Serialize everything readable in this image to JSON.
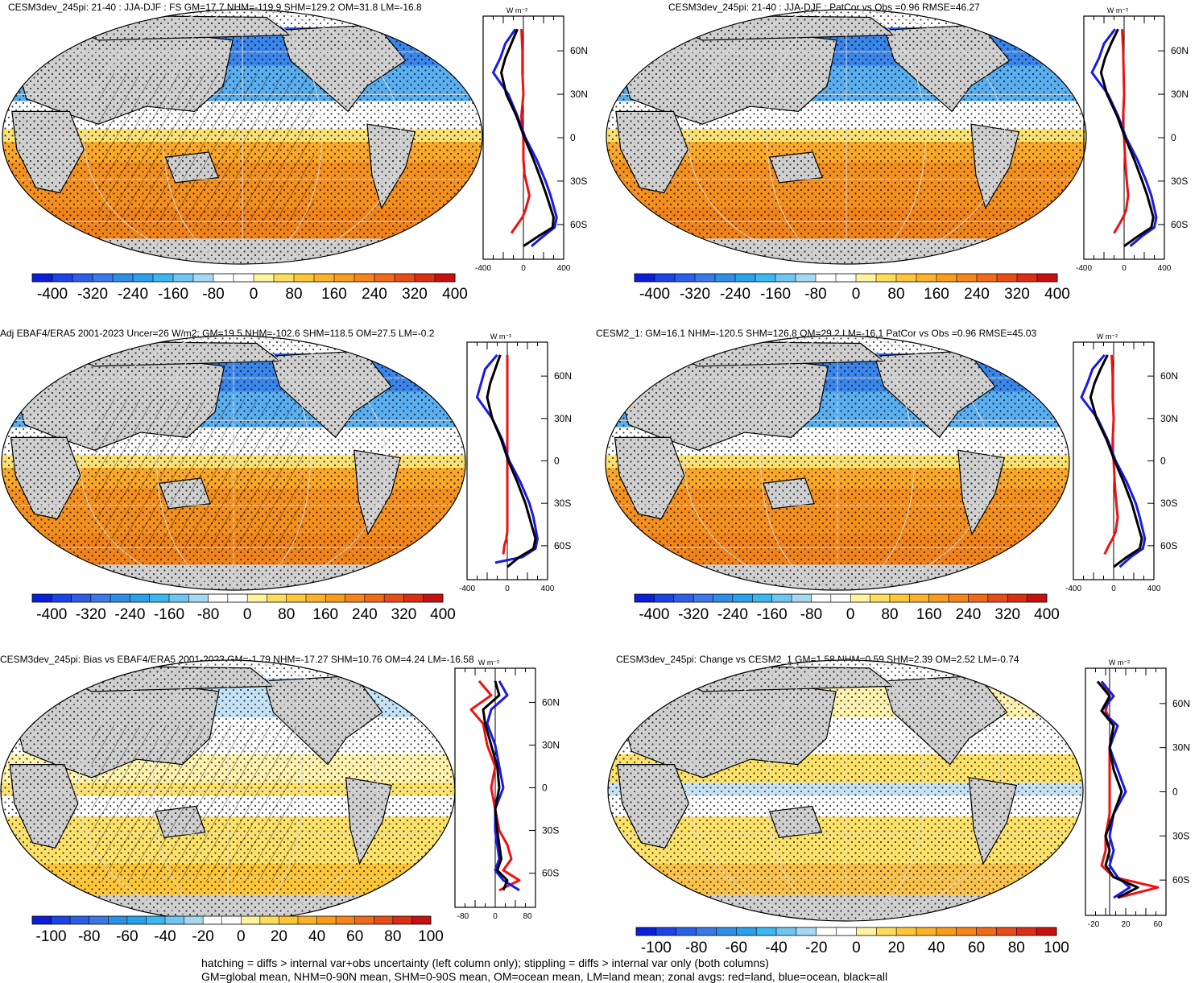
{
  "footer": {
    "line1": "hatching = diffs > internal var+obs uncertainty (left column only); stippling = diffs > internal var only (both columns)",
    "line2": "GM=global mean, NHM=0-90N mean, SHM=0-90S mean, OM=ocean mean, LM=land mean; zonal avgs: red=land, blue=ocean, black=all"
  },
  "palette": [
    "#0a1fd6",
    "#1b43e6",
    "#2c5ee8",
    "#3b78e8",
    "#2f8ee6",
    "#2aa1ea",
    "#3db7ef",
    "#70c6f0",
    "#a6d8f3",
    "#ffffff",
    "#ffffff",
    "#fef3a0",
    "#fddc5b",
    "#fcc638",
    "#fbb22a",
    "#f99b1c",
    "#f5841a",
    "#f06a19",
    "#e84d17",
    "#dc2e14",
    "#c81010"
  ],
  "units": "W m⁻²",
  "zonal_colors": {
    "land": "#ee1111",
    "ocean": "#1a1ae6",
    "all": "#000000"
  },
  "panels": [
    {
      "title": "CESM3dev_245pi: 21-40 : JJA-DJF : FS GM=17.7 NHM=-119.9 SHM=129.2 OM=31.8 LM=-16.8",
      "colorbar_labels": [
        "-400",
        "-320",
        "-240",
        "-160",
        "-80",
        "0",
        "80",
        "160",
        "240",
        "320",
        "400"
      ],
      "chart_data": {
        "type": "line",
        "xlim": [
          -400,
          400
        ],
        "xtick_labels": [
          "-400",
          "0",
          "400"
        ],
        "ytick_labels": [
          "60N",
          "30N",
          "0",
          "30S",
          "60S"
        ],
        "series": [
          {
            "name": "land",
            "x": [
              -20,
              -10,
              -10,
              0,
              -20,
              -10,
              0,
              0,
              10,
              60,
              20,
              -10,
              -60,
              -120
            ],
            "y": [
              75,
              60,
              45,
              30,
              15,
              5,
              0,
              -15,
              -25,
              -40,
              -50,
              -55,
              -60,
              -66
            ]
          },
          {
            "name": "ocean",
            "x": [
              -80,
              -180,
              -230,
              -300,
              -150,
              -60,
              20,
              130,
              220,
              270,
              330,
              310,
              200,
              80
            ],
            "y": [
              75,
              65,
              55,
              45,
              30,
              15,
              0,
              -15,
              -30,
              -40,
              -55,
              -62,
              -68,
              -75
            ]
          },
          {
            "name": "all",
            "x": [
              -60,
              -120,
              -180,
              -220,
              -170,
              -70,
              10,
              100,
              180,
              230,
              300,
              290,
              150,
              0
            ],
            "y": [
              75,
              65,
              55,
              45,
              30,
              15,
              0,
              -15,
              -30,
              -40,
              -55,
              -62,
              -68,
              -75
            ]
          }
        ]
      }
    },
    {
      "title": "CESM3dev_245pi: 21-40 : JJA-DJF : PatCor vs Obs =0.96 RMSE=46.27",
      "colorbar_labels": [
        "-400",
        "-320",
        "-240",
        "-160",
        "-80",
        "0",
        "80",
        "160",
        "240",
        "320",
        "400"
      ],
      "chart_data": {
        "type": "line",
        "xlim": [
          -400,
          400
        ],
        "xtick_labels": [
          "-400",
          "0",
          "400"
        ],
        "ytick_labels": [
          "60N",
          "30N",
          "0",
          "30S",
          "60S"
        ],
        "series": [
          {
            "name": "land",
            "x": [
              -20,
              -10,
              -5,
              0,
              -10,
              -10,
              0,
              10,
              20,
              40,
              20,
              -10,
              -50,
              -100
            ],
            "y": [
              75,
              60,
              45,
              30,
              15,
              5,
              0,
              -15,
              -25,
              -40,
              -50,
              -55,
              -60,
              -66
            ]
          },
          {
            "name": "ocean",
            "x": [
              -90,
              -200,
              -250,
              -320,
              -160,
              -60,
              20,
              130,
              220,
              270,
              320,
              300,
              180,
              60
            ],
            "y": [
              75,
              65,
              55,
              45,
              30,
              15,
              0,
              -15,
              -30,
              -40,
              -55,
              -62,
              -68,
              -75
            ]
          },
          {
            "name": "all",
            "x": [
              -60,
              -130,
              -190,
              -230,
              -170,
              -70,
              10,
              100,
              180,
              230,
              290,
              270,
              140,
              0
            ],
            "y": [
              75,
              65,
              55,
              45,
              30,
              15,
              0,
              -15,
              -30,
              -40,
              -55,
              -62,
              -68,
              -75
            ]
          }
        ]
      }
    },
    {
      "title": "Adj EBAF4/ERA5 2001-2023 Uncer=26 W/m2: GM=19.5 NHM=-102.6 SHM=118.5 OM=27.5 LM=-0.2",
      "colorbar_labels": [
        "-400",
        "-320",
        "-240",
        "-160",
        "-80",
        "0",
        "80",
        "160",
        "240",
        "320",
        "400"
      ],
      "chart_data": {
        "type": "line",
        "xlim": [
          -400,
          400
        ],
        "xtick_labels": [
          "-400",
          "0",
          "400"
        ],
        "ytick_labels": [
          "60N",
          "30N",
          "0",
          "30S",
          "60S"
        ],
        "series": [
          {
            "name": "land",
            "x": [
              0,
              0,
              0,
              0,
              0,
              0,
              0,
              0,
              0,
              0,
              0,
              -10,
              -30,
              -40
            ],
            "y": [
              75,
              60,
              45,
              30,
              15,
              5,
              0,
              -15,
              -25,
              -40,
              -50,
              -55,
              -60,
              -66
            ]
          },
          {
            "name": "ocean",
            "x": [
              -100,
              -220,
              -260,
              -300,
              -150,
              -50,
              20,
              130,
              220,
              260,
              300,
              280,
              150,
              -120
            ],
            "y": [
              75,
              65,
              55,
              45,
              30,
              15,
              0,
              -15,
              -30,
              -40,
              -55,
              -62,
              -68,
              -72
            ]
          },
          {
            "name": "all",
            "x": [
              -70,
              -120,
              -170,
              -200,
              -150,
              -60,
              10,
              100,
              180,
              220,
              280,
              260,
              120,
              0
            ],
            "y": [
              75,
              65,
              55,
              45,
              30,
              15,
              0,
              -15,
              -30,
              -40,
              -55,
              -62,
              -68,
              -75
            ]
          }
        ]
      }
    },
    {
      "title": "CESM2_1: GM=16.1 NHM=-120.5 SHM=126.8 OM=29.2 LM=-16.1 PatCor vs Obs =0.96 RMSE=45.03",
      "colorbar_labels": [
        "-400",
        "-320",
        "-240",
        "-160",
        "-80",
        "0",
        "80",
        "160",
        "240",
        "320",
        "400"
      ],
      "chart_data": {
        "type": "line",
        "xlim": [
          -400,
          400
        ],
        "xtick_labels": [
          "-400",
          "0",
          "400"
        ],
        "ytick_labels": [
          "60N",
          "30N",
          "0",
          "30S",
          "60S"
        ],
        "series": [
          {
            "name": "land",
            "x": [
              -20,
              -10,
              -10,
              0,
              -10,
              -10,
              0,
              10,
              20,
              40,
              20,
              -10,
              -50,
              -90
            ],
            "y": [
              75,
              60,
              45,
              30,
              15,
              5,
              0,
              -15,
              -25,
              -40,
              -50,
              -55,
              -60,
              -66
            ]
          },
          {
            "name": "ocean",
            "x": [
              -90,
              -210,
              -260,
              -320,
              -160,
              -60,
              20,
              130,
              220,
              260,
              310,
              290,
              170,
              60
            ],
            "y": [
              75,
              65,
              55,
              45,
              30,
              15,
              0,
              -15,
              -30,
              -40,
              -55,
              -62,
              -68,
              -75
            ]
          },
          {
            "name": "all",
            "x": [
              -60,
              -130,
              -190,
              -230,
              -170,
              -70,
              10,
              100,
              180,
              220,
              280,
              260,
              130,
              0
            ],
            "y": [
              75,
              65,
              55,
              45,
              30,
              15,
              0,
              -15,
              -30,
              -40,
              -55,
              -62,
              -68,
              -75
            ]
          }
        ]
      }
    },
    {
      "title": "CESM3dev_245pi: Bias vs EBAF4/ERA5 2001-2023 GM=-1.79 NHM=-17.27 SHM=10.76 OM=4.24 LM=-16.58",
      "colorbar_labels": [
        "-100",
        "-80",
        "-60",
        "-40",
        "-20",
        "0",
        "20",
        "40",
        "60",
        "80",
        "100"
      ],
      "chart_data": {
        "type": "line",
        "xlim": [
          -100,
          100
        ],
        "xtick_labels": [
          "-80",
          "0",
          "80"
        ],
        "ytick_labels": [
          "60N",
          "30N",
          "0",
          "30S",
          "60S"
        ],
        "series": [
          {
            "name": "land",
            "x": [
              -40,
              -10,
              -60,
              -30,
              -20,
              0,
              -10,
              0,
              10,
              30,
              40,
              20,
              60,
              10
            ],
            "y": [
              75,
              65,
              55,
              45,
              30,
              15,
              0,
              -15,
              -30,
              -40,
              -50,
              -58,
              -65,
              -72
            ]
          },
          {
            "name": "ocean",
            "x": [
              10,
              30,
              -10,
              -20,
              0,
              10,
              20,
              0,
              0,
              5,
              10,
              0,
              20,
              60
            ],
            "y": [
              75,
              65,
              55,
              45,
              30,
              15,
              0,
              -15,
              -30,
              -40,
              -50,
              -58,
              -65,
              -72
            ]
          },
          {
            "name": "all",
            "x": [
              0,
              10,
              -30,
              -25,
              -10,
              5,
              10,
              0,
              5,
              10,
              15,
              5,
              30,
              20
            ],
            "y": [
              75,
              65,
              55,
              45,
              30,
              15,
              0,
              -15,
              -30,
              -40,
              -50,
              -58,
              -65,
              -72
            ]
          }
        ]
      }
    },
    {
      "title": "CESM3dev_245pi: Change vs CESM2_1 GM=1.58 NHM=0.59 SHM=2.39 OM=2.52 LM=-0.74",
      "colorbar_labels": [
        "-100",
        "-80",
        "-60",
        "-40",
        "-20",
        "0",
        "20",
        "40",
        "60",
        "80",
        "100"
      ],
      "chart_data": {
        "type": "line",
        "xlim": [
          -30,
          70
        ],
        "xtick_labels": [
          "-20",
          "20",
          "60"
        ],
        "ytick_labels": [
          "60N",
          "30N",
          "0",
          "30S",
          "60S"
        ],
        "series": [
          {
            "name": "land",
            "x": [
              -10,
              0,
              -5,
              5,
              0,
              0,
              0,
              0,
              -5,
              -5,
              -10,
              5,
              60,
              10
            ],
            "y": [
              75,
              65,
              55,
              45,
              30,
              15,
              0,
              -15,
              -30,
              -40,
              -50,
              -58,
              -65,
              -72
            ]
          },
          {
            "name": "ocean",
            "x": [
              -10,
              5,
              -10,
              10,
              0,
              10,
              20,
              5,
              0,
              5,
              0,
              10,
              25,
              5
            ],
            "y": [
              75,
              65,
              55,
              45,
              30,
              15,
              0,
              -15,
              -30,
              -40,
              -50,
              -58,
              -65,
              -72
            ]
          },
          {
            "name": "all",
            "x": [
              -15,
              0,
              -10,
              5,
              0,
              5,
              15,
              5,
              -5,
              0,
              -5,
              5,
              35,
              10
            ],
            "y": [
              75,
              65,
              55,
              45,
              30,
              15,
              0,
              -15,
              -30,
              -40,
              -50,
              -58,
              -65,
              -72
            ]
          }
        ]
      }
    }
  ]
}
